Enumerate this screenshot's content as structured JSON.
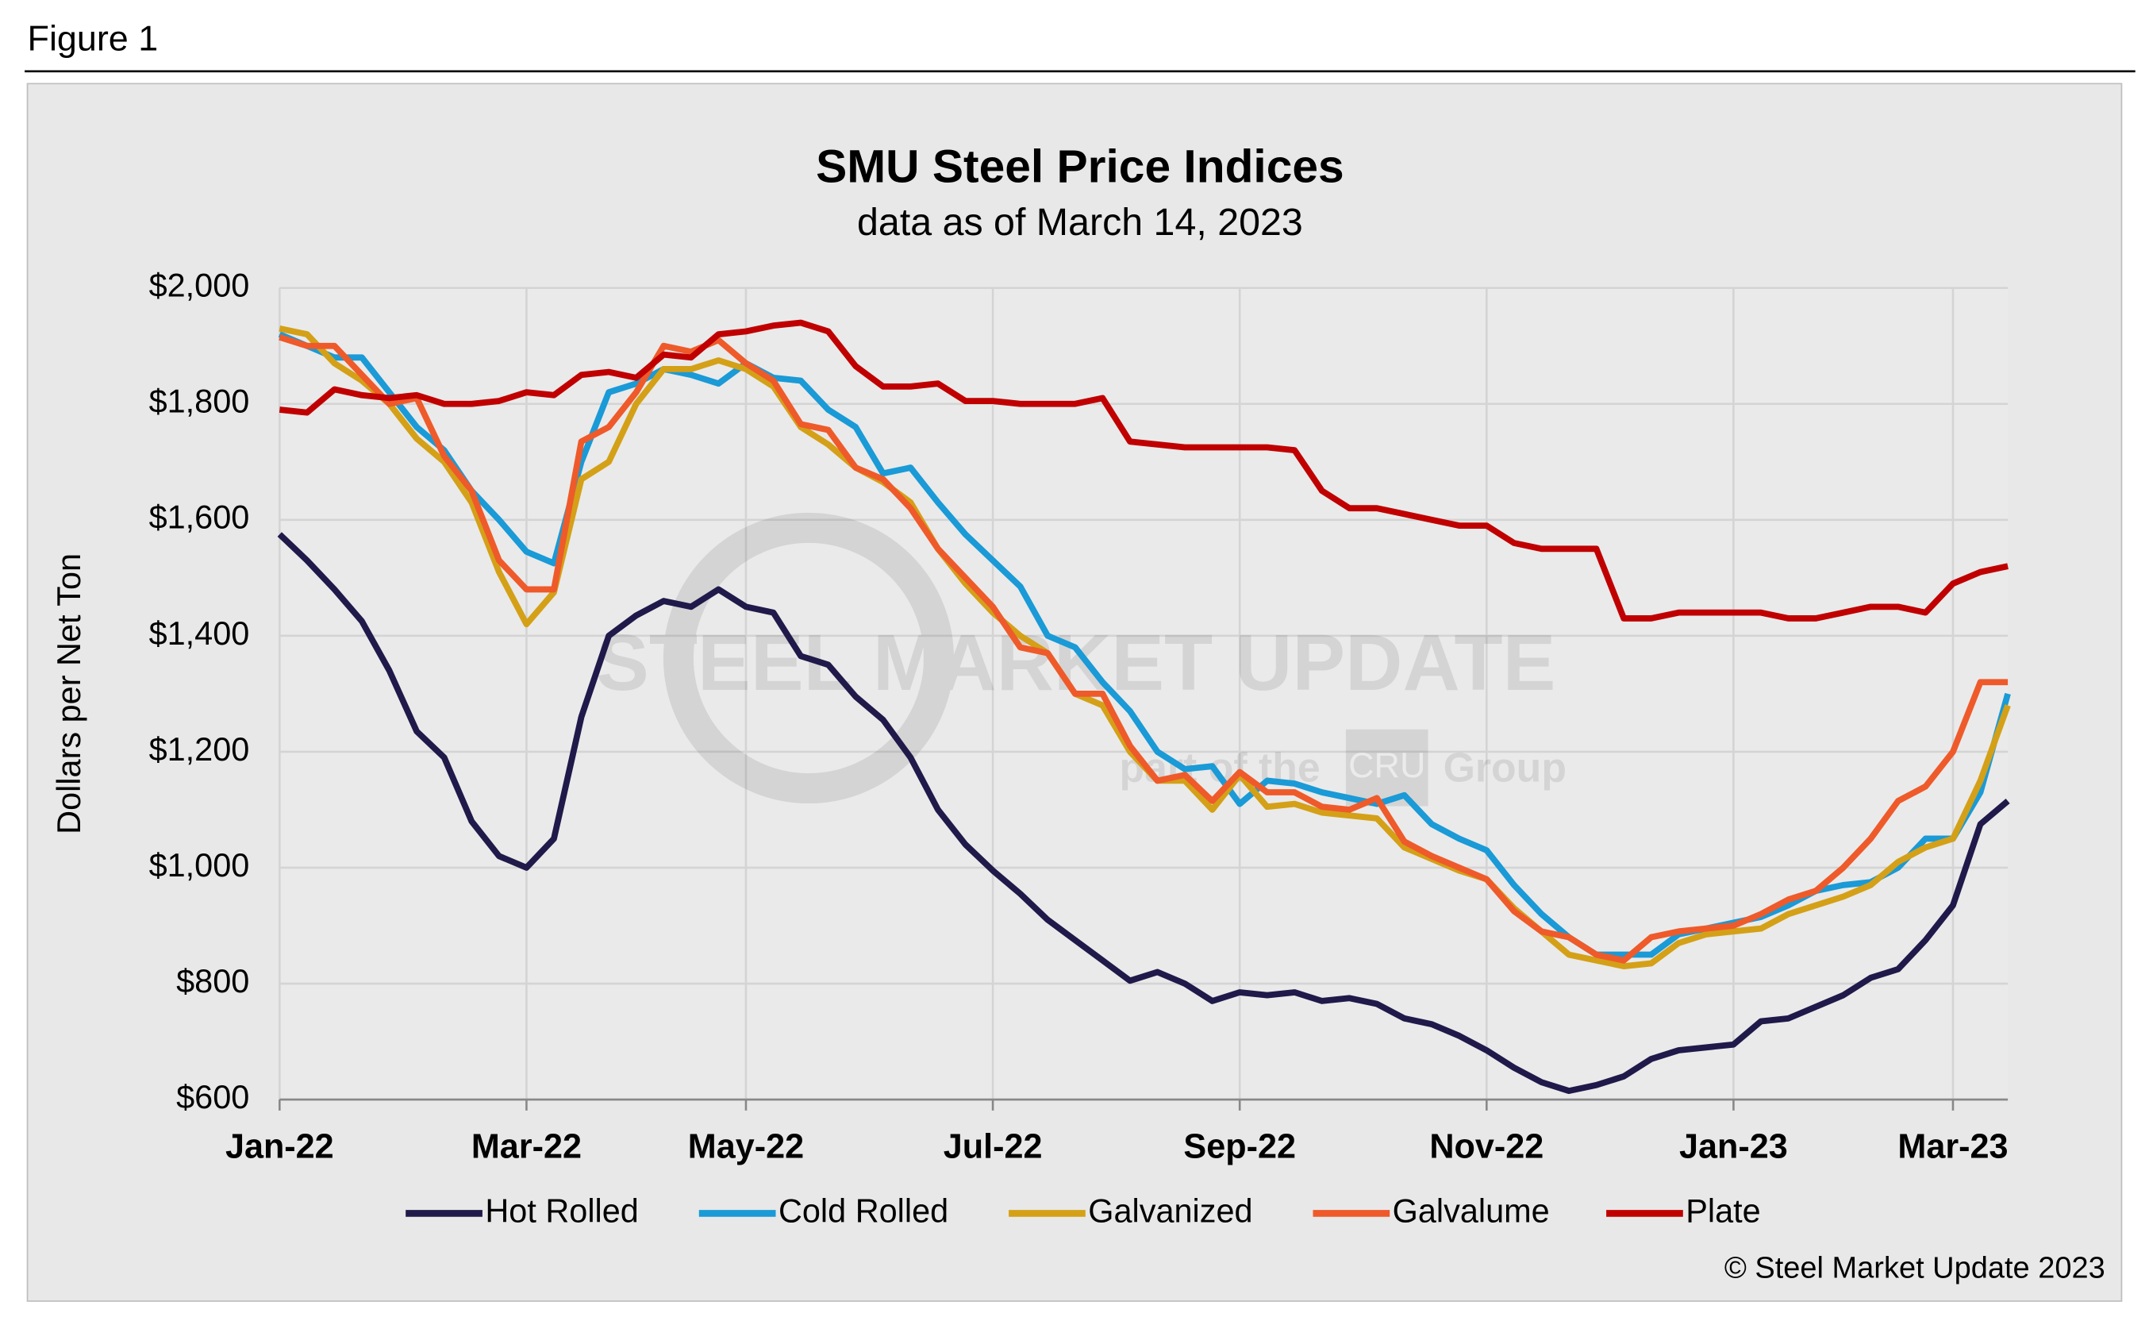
{
  "header": "Figure 1",
  "copyright": "© Steel Market Update 2023",
  "watermark": [
    "STEEL MARKET UPDATE",
    "part of the",
    "CRU",
    "Group"
  ],
  "chart_data": {
    "type": "line",
    "title": "SMU Steel Price Indices",
    "subtitle": "data as of March 14, 2023",
    "y_label": "Dollars per Net Ton",
    "categories": [
      "Jan-22",
      null,
      null,
      null,
      null,
      null,
      null,
      null,
      null,
      "Mar-22",
      null,
      null,
      null,
      null,
      null,
      null,
      null,
      "May-22",
      null,
      null,
      null,
      null,
      null,
      null,
      null,
      null,
      "Jul-22",
      null,
      null,
      null,
      null,
      null,
      null,
      null,
      null,
      "Sep-22",
      null,
      null,
      null,
      null,
      null,
      null,
      null,
      null,
      "Nov-22",
      null,
      null,
      null,
      null,
      null,
      null,
      null,
      null,
      "Jan-23",
      null,
      null,
      null,
      null,
      null,
      null,
      null,
      "Mar-23",
      null,
      null
    ],
    "ylim": [
      600,
      2000
    ],
    "yticks": [
      {
        "value": 600,
        "label": "$600"
      },
      {
        "value": 800,
        "label": "$800"
      },
      {
        "value": 1000,
        "label": "$1,000"
      },
      {
        "value": 1200,
        "label": "$1,200"
      },
      {
        "value": 1400,
        "label": "$1,400"
      },
      {
        "value": 1600,
        "label": "$1,600"
      },
      {
        "value": 1800,
        "label": "$1,800"
      },
      {
        "value": 2000,
        "label": "$2,000"
      }
    ],
    "grid": true,
    "legend": "bottom",
    "series": [
      {
        "name": "Hot Rolled",
        "color": "#1f1a4a",
        "values": [
          1575,
          1530,
          1480,
          1425,
          1340,
          1235,
          1190,
          1080,
          1020,
          1000,
          1050,
          1260,
          1400,
          1435,
          1460,
          1450,
          1480,
          1450,
          1440,
          1365,
          1350,
          1295,
          1255,
          1190,
          1100,
          1040,
          995,
          955,
          910,
          875,
          840,
          805,
          820,
          800,
          770,
          785,
          780,
          785,
          770,
          775,
          765,
          740,
          730,
          710,
          685,
          655,
          630,
          615,
          625,
          640,
          670,
          685,
          690,
          695,
          735,
          740,
          760,
          780,
          810,
          825,
          875,
          935,
          1075,
          1115
        ]
      },
      {
        "name": "Cold Rolled",
        "color": "#1a9ad6",
        "values": [
          1920,
          1900,
          1880,
          1880,
          1820,
          1760,
          1720,
          1650,
          1600,
          1545,
          1525,
          1700,
          1820,
          1835,
          1860,
          1850,
          1835,
          1870,
          1845,
          1840,
          1790,
          1760,
          1680,
          1690,
          1630,
          1575,
          1530,
          1485,
          1400,
          1380,
          1320,
          1270,
          1200,
          1170,
          1175,
          1110,
          1150,
          1145,
          1130,
          1120,
          1110,
          1125,
          1075,
          1050,
          1030,
          970,
          920,
          880,
          850,
          850,
          850,
          885,
          895,
          905,
          915,
          935,
          960,
          970,
          975,
          1000,
          1050,
          1050,
          1130,
          1300
        ]
      },
      {
        "name": "Galvanized",
        "color": "#d4a017",
        "values": [
          1930,
          1920,
          1870,
          1840,
          1800,
          1740,
          1700,
          1630,
          1510,
          1420,
          1475,
          1670,
          1700,
          1800,
          1860,
          1860,
          1875,
          1860,
          1830,
          1760,
          1730,
          1690,
          1665,
          1630,
          1550,
          1490,
          1440,
          1400,
          1370,
          1300,
          1280,
          1200,
          1150,
          1150,
          1100,
          1160,
          1105,
          1110,
          1095,
          1090,
          1085,
          1035,
          1015,
          995,
          980,
          930,
          890,
          850,
          840,
          830,
          835,
          870,
          885,
          890,
          895,
          920,
          935,
          950,
          970,
          1010,
          1035,
          1050,
          1150,
          1280
        ]
      },
      {
        "name": "Galvalume",
        "color": "#ef5a2a",
        "values": [
          1915,
          1900,
          1900,
          1850,
          1800,
          1810,
          1710,
          1650,
          1530,
          1480,
          1480,
          1735,
          1760,
          1820,
          1900,
          1890,
          1910,
          1870,
          1840,
          1765,
          1755,
          1690,
          1670,
          1620,
          1550,
          1500,
          1450,
          1380,
          1370,
          1300,
          1300,
          1210,
          1150,
          1160,
          1115,
          1165,
          1130,
          1130,
          1105,
          1100,
          1120,
          1045,
          1020,
          1000,
          980,
          925,
          890,
          880,
          850,
          840,
          880,
          890,
          895,
          900,
          920,
          945,
          960,
          1000,
          1050,
          1115,
          1140,
          1200,
          1320,
          1320
        ]
      },
      {
        "name": "Plate",
        "color": "#c00000",
        "values": [
          1790,
          1785,
          1825,
          1815,
          1810,
          1815,
          1800,
          1800,
          1805,
          1820,
          1815,
          1850,
          1855,
          1845,
          1885,
          1880,
          1920,
          1925,
          1935,
          1940,
          1925,
          1865,
          1830,
          1830,
          1835,
          1805,
          1805,
          1800,
          1800,
          1800,
          1810,
          1735,
          1730,
          1725,
          1725,
          1725,
          1725,
          1720,
          1650,
          1620,
          1620,
          1610,
          1600,
          1590,
          1590,
          1560,
          1550,
          1550,
          1550,
          1430,
          1430,
          1440,
          1440,
          1440,
          1440,
          1430,
          1430,
          1440,
          1450,
          1450,
          1440,
          1490,
          1510,
          1520
        ]
      }
    ]
  }
}
